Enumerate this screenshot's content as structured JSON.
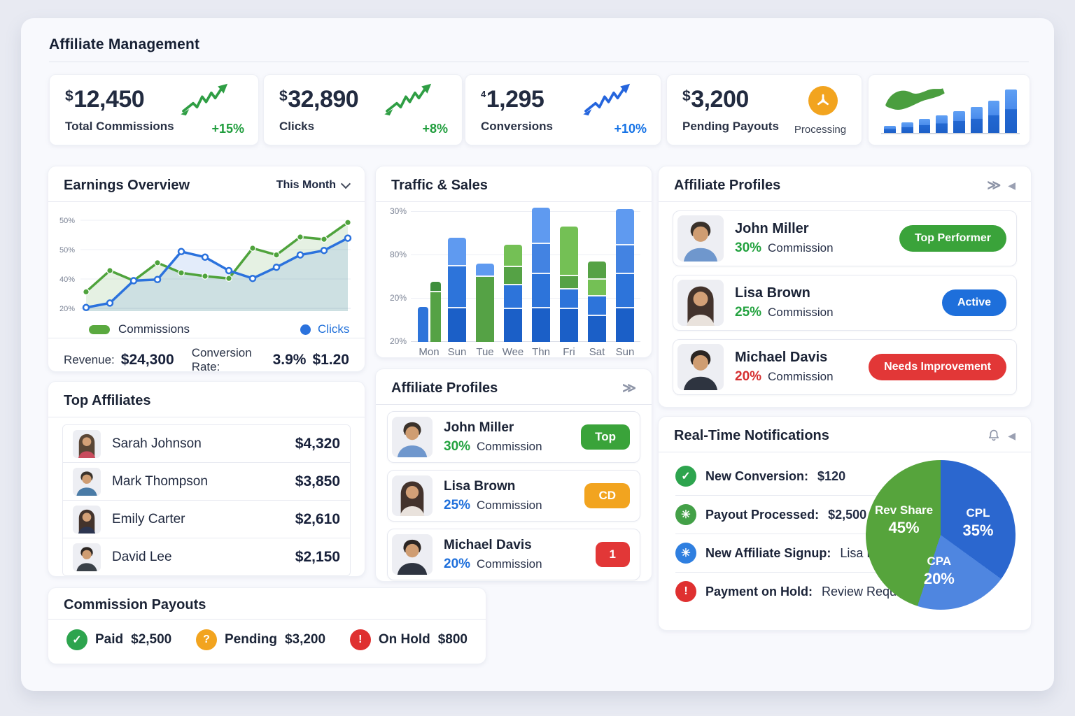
{
  "header": {
    "title": "Affiliate Management"
  },
  "icons": {
    "expand": "≫",
    "collapse": "◀"
  },
  "stats": [
    {
      "prefix": "$",
      "value": "12,450",
      "label": "Total Commissions",
      "delta": "+15%",
      "delta_color": "#1f9d3c"
    },
    {
      "prefix": "$",
      "value": "32,890",
      "label": "Clicks",
      "delta": "+8%",
      "delta_color": "#1f9d3c"
    },
    {
      "prefix": "4",
      "value": "1,295",
      "label": "Conversions",
      "delta": "+10%",
      "delta_color": "#1673e6"
    },
    {
      "prefix": "$",
      "value": "3,200",
      "label": "Pending Payouts",
      "status": "Processing",
      "status_color": "#f2a41f"
    }
  ],
  "earnings": {
    "title": "Earnings Overview",
    "period": "This Month",
    "legend": [
      "Commissions",
      "Clicks"
    ],
    "footer": {
      "revenue_label": "Revenue:",
      "revenue": "$24,300",
      "conversion_label": "Conversion Rate:",
      "conversion_rate": "3.9%",
      "epc": "$1.20"
    }
  },
  "traffic": {
    "title": "Traffic & Sales"
  },
  "profiles_right": {
    "title": "Affiliate Profiles",
    "commission_label": "Commission",
    "items": [
      {
        "name": "John Miller",
        "pct": "30%",
        "pct_color": "#23a23f",
        "badge": "Top Performer",
        "badge_color": "#3aa33a"
      },
      {
        "name": "Lisa Brown",
        "pct": "25%",
        "pct_color": "#23a23f",
        "badge": "Active",
        "badge_color": "#1e6fdb"
      },
      {
        "name": "Michael Davis",
        "pct": "20%",
        "pct_color": "#d63031",
        "badge": "Needs Improvement",
        "badge_color": "#e23737"
      }
    ]
  },
  "top_affiliates": {
    "title": "Top Affiliates",
    "rows": [
      {
        "name": "Sarah Johnson",
        "amount": "$4,320"
      },
      {
        "name": "Mark Thompson",
        "amount": "$3,850"
      },
      {
        "name": "Emily Carter",
        "amount": "$2,610"
      },
      {
        "name": "David Lee",
        "amount": "$2,150"
      }
    ]
  },
  "profiles_mid": {
    "title": "Affiliate Profiles",
    "commission_label": "Commission",
    "items": [
      {
        "name": "John Miller",
        "pct": "30%",
        "pct_color": "#23a23f",
        "badge": "Top",
        "badge_color": "#3aa33a"
      },
      {
        "name": "Lisa Brown",
        "pct": "25%",
        "pct_color": "#1e6fdb",
        "badge": "CD",
        "badge_color": "#f2a41f"
      },
      {
        "name": "Michael Davis",
        "pct": "20%",
        "pct_color": "#1e6fdb",
        "badge": "1",
        "badge_color": "#e23737"
      }
    ]
  },
  "notifications": {
    "title": "Real-Time Notifications",
    "items": [
      {
        "icon": "✓",
        "icon_color": "#2da44e",
        "label": "New Conversion:",
        "value": "$120",
        "value_bold": true
      },
      {
        "icon": "✳",
        "icon_color": "#43a047",
        "label": "Payout Processed:",
        "value": "$2,500",
        "value_bold": true
      },
      {
        "icon": "✳",
        "icon_color": "#2f7fe0",
        "label": "New Affiliate Signup:",
        "value": "Lisa B.",
        "value_bold": false
      },
      {
        "icon": "!",
        "icon_color": "#df3030",
        "label": "Payment on Hold:",
        "value": "Review Required",
        "value_bold": false
      }
    ]
  },
  "payouts": {
    "title": "Commission Payouts",
    "items": [
      {
        "icon": "✓",
        "icon_color": "#2da44e",
        "label": "Paid",
        "value": "$2,500"
      },
      {
        "icon": "?",
        "icon_color": "#f2a41f",
        "label": "Pending",
        "value": "$3,200"
      },
      {
        "icon": "!",
        "icon_color": "#df3030",
        "label": "On Hold",
        "value": "$800"
      }
    ]
  },
  "chart_data": [
    {
      "id": "earnings",
      "type": "line",
      "title": "Earnings Overview",
      "period": "This Month",
      "y_ticks": [
        "50%",
        "50%",
        "40%",
        "20%"
      ],
      "ylim": [
        20,
        60
      ],
      "grid": true,
      "legend_position": "bottom",
      "series": [
        {
          "name": "Commissions",
          "color": "#4fa33c",
          "fill": "rgba(95,170,80,0.16)",
          "dot": "solid",
          "values": [
            28,
            37.5,
            33,
            41,
            36.5,
            35,
            34,
            47.5,
            44.5,
            52.5,
            51.5,
            59
          ]
        },
        {
          "name": "Clicks",
          "color": "#2b72dd",
          "fill": "rgba(70,130,220,0.15)",
          "dot": "hollow",
          "values": [
            21,
            23,
            33,
            33.5,
            46,
            43.5,
            37.5,
            34,
            39,
            44.5,
            46.5,
            52
          ]
        }
      ]
    },
    {
      "id": "traffic",
      "type": "bar",
      "stacked": true,
      "title": "Traffic & Sales",
      "y_ticks": [
        "30%",
        "80%",
        "20%",
        "20%"
      ],
      "categories": [
        "Mon",
        "Sun",
        "Tue",
        "Wee",
        "Thn",
        "Fri",
        "Sat",
        "Sun"
      ],
      "ylim": [
        0,
        100
      ],
      "groups": [
        {
          "label": "Mon",
          "bars": [
            [
              {
                "color": "#2d74da",
                "v": 27
              }
            ],
            [
              {
                "color": "#55a245",
                "v": 38
              },
              {
                "color": "#3f8f3d",
                "v": 7
              }
            ]
          ]
        },
        {
          "label": "Sun",
          "bars": [
            [
              {
                "color": "#1b5fc7",
                "v": 26
              },
              {
                "color": "#2d74da",
                "v": 31
              },
              {
                "color": "#5f9af0",
                "v": 21
              }
            ]
          ]
        },
        {
          "label": "Tue",
          "bars": [
            [
              {
                "color": "#55a245",
                "v": 50
              },
              {
                "color": "#5f9af0",
                "v": 9
              }
            ]
          ]
        },
        {
          "label": "Wee",
          "bars": [
            [
              {
                "color": "#1b5fc7",
                "v": 25
              },
              {
                "color": "#2d74da",
                "v": 17
              },
              {
                "color": "#55a245",
                "v": 13
              },
              {
                "color": "#74c055",
                "v": 16
              }
            ]
          ]
        },
        {
          "label": "Thn",
          "bars": [
            [
              {
                "color": "#1b5fc7",
                "v": 26
              },
              {
                "color": "#2d74da",
                "v": 25
              },
              {
                "color": "#4383e2",
                "v": 22
              },
              {
                "color": "#5f9af0",
                "v": 27
              }
            ]
          ]
        },
        {
          "label": "Fri",
          "bars": [
            [
              {
                "color": "#1b5fc7",
                "v": 25
              },
              {
                "color": "#2d74da",
                "v": 14
              },
              {
                "color": "#55a245",
                "v": 9
              },
              {
                "color": "#74c055",
                "v": 37
              }
            ]
          ]
        },
        {
          "label": "Sat",
          "bars": [
            [
              {
                "color": "#1b5fc7",
                "v": 20
              },
              {
                "color": "#2d74da",
                "v": 14
              },
              {
                "color": "#74c055",
                "v": 12
              },
              {
                "color": "#55a245",
                "v": 13
              }
            ]
          ]
        },
        {
          "label": "Sun",
          "bars": [
            [
              {
                "color": "#1b5fc7",
                "v": 26
              },
              {
                "color": "#2d74da",
                "v": 25
              },
              {
                "color": "#4383e2",
                "v": 21
              },
              {
                "color": "#5f9af0",
                "v": 27
              }
            ]
          ]
        }
      ]
    },
    {
      "id": "payout_mix",
      "type": "pie",
      "labels_inside": true,
      "slices": [
        {
          "label": "CPL",
          "value": 35,
          "color": "#2b67cf"
        },
        {
          "label": "CPA",
          "value": 20,
          "color": "#4f86e0"
        },
        {
          "label": "Rev Share",
          "value": 45,
          "color": "#56a43c"
        }
      ]
    },
    {
      "id": "mini_trend",
      "type": "bar",
      "values": [
        10,
        15,
        20,
        25,
        31,
        37,
        46,
        62
      ]
    }
  ]
}
